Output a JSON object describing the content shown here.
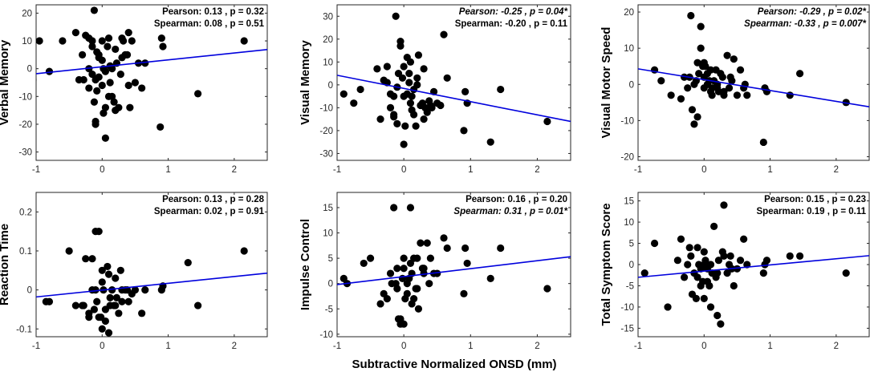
{
  "figure": {
    "xlabel": "Subtractive Normalized ONSD (mm)"
  },
  "chart_data": [
    {
      "type": "scatter",
      "ylabel": "Verbal Memory",
      "xlim": [
        -1,
        2.5
      ],
      "ylim": [
        -33,
        23
      ],
      "xticks": [
        -1,
        0,
        1,
        2
      ],
      "yticks": [
        -30,
        -20,
        -10,
        0,
        10,
        20
      ],
      "stats": [
        {
          "text": "Pearson: 0.13 , p = 0.32",
          "italic": false
        },
        {
          "text": "Spearman: 0.08 , p = 0.51",
          "italic": false
        }
      ],
      "fit": {
        "x": [
          -1,
          2.5
        ],
        "y": [
          -1.8,
          6.9
        ]
      },
      "x": [
        -1.05,
        -0.95,
        -0.8,
        -0.6,
        -0.4,
        -0.35,
        -0.3,
        -0.25,
        -0.2,
        -0.2,
        -0.15,
        -0.15,
        -0.12,
        -0.1,
        -0.1,
        -0.08,
        -0.05,
        -0.05,
        0,
        0,
        0,
        0.02,
        0.05,
        0.05,
        0.08,
        0.1,
        0.1,
        0.12,
        0.15,
        0.15,
        0.2,
        0.2,
        0.25,
        0.3,
        0.3,
        0.35,
        0.4,
        0.4,
        0.45,
        0.5,
        0.55,
        0.6,
        0.65,
        0.9,
        0.92,
        1.45,
        2.15,
        -0.1,
        -0.12,
        -0.08,
        -0.05,
        0.12,
        0.18,
        -0.15,
        0.22,
        0.05,
        -0.2,
        0.28,
        0.32,
        0.38,
        0.42,
        0.02,
        -0.28,
        0.88
      ],
      "y": [
        -4,
        10,
        -1,
        10,
        13,
        -4,
        5,
        12,
        11,
        0,
        8,
        10,
        21,
        -19,
        -20,
        6,
        -3,
        5,
        10,
        3,
        -6,
        0,
        -14,
        -25,
        8,
        11,
        -10,
        -5,
        0,
        -10,
        7,
        -15,
        -14,
        11,
        4,
        5,
        -6,
        13,
        10,
        -5,
        2,
        -7,
        2,
        11,
        8,
        -9,
        10,
        -4,
        -12,
        -8,
        4,
        1,
        -12,
        -2,
        2,
        -1,
        -7,
        -2,
        10,
        5,
        -14,
        -16,
        -4,
        -21
      ]
    },
    {
      "type": "scatter",
      "ylabel": "Visual Memory",
      "xlim": [
        -1,
        2.5
      ],
      "ylim": [
        -33,
        35
      ],
      "xticks": [
        -1,
        0,
        1,
        2
      ],
      "yticks": [
        -30,
        -20,
        -10,
        0,
        10,
        20,
        30
      ],
      "stats": [
        {
          "text": "Pearson: -0.25 , p = 0.04*",
          "italic": true
        },
        {
          "text": "Spearman: -0.20 , p = 0.11",
          "italic": false
        }
      ],
      "fit": {
        "x": [
          -1,
          2.5
        ],
        "y": [
          4.2,
          -16.0
        ]
      },
      "x": [
        -0.9,
        -0.75,
        -0.65,
        -0.4,
        -0.35,
        -0.3,
        -0.25,
        -0.2,
        -0.15,
        -0.15,
        -0.12,
        -0.1,
        -0.08,
        -0.05,
        0,
        0,
        0,
        0.02,
        0.05,
        0.05,
        0.08,
        0.1,
        0.1,
        0.12,
        0.15,
        0.15,
        0.2,
        0.2,
        0.25,
        0.3,
        0.3,
        0.35,
        0.4,
        0.45,
        0.5,
        0.6,
        0.65,
        0.9,
        0.92,
        0.95,
        1.3,
        1.45,
        2.15,
        -0.1,
        -0.05,
        -0.2,
        0.18,
        0.22,
        -0.25,
        0.28,
        0.32,
        0.38,
        -0.02,
        0.12,
        -0.15,
        0.08,
        0.42,
        0.55
      ],
      "y": [
        -4,
        -8,
        -2,
        7,
        -15,
        2,
        8,
        -10,
        -13,
        -5,
        30,
        -17,
        5,
        19,
        -26,
        -5,
        8,
        -18,
        -4,
        12,
        5,
        -8,
        10,
        -5,
        -13,
        -2,
        0,
        3,
        -9,
        7,
        -15,
        -12,
        -9,
        -3,
        -8,
        22,
        3,
        -20,
        -3,
        -8,
        -25,
        -2,
        -16,
        -1,
        17,
        -4,
        -18,
        13,
        1,
        -8,
        -10,
        -7,
        3,
        -11,
        -14,
        1,
        -10,
        -9
      ]
    },
    {
      "type": "scatter",
      "ylabel": "Visual Motor Speed",
      "xlim": [
        -1,
        2.5
      ],
      "ylim": [
        -21,
        22
      ],
      "xticks": [
        -1,
        0,
        1,
        2
      ],
      "yticks": [
        -20,
        -10,
        0,
        10,
        20
      ],
      "stats": [
        {
          "text": "Pearson: -0.29 , p = 0.02*",
          "italic": true
        },
        {
          "text": "Spearman: -0.33 , p = 0.007*",
          "italic": true
        }
      ],
      "fit": {
        "x": [
          -1,
          2.5
        ],
        "y": [
          4.3,
          -6.2
        ]
      },
      "x": [
        -0.75,
        -0.65,
        -0.5,
        -0.35,
        -0.3,
        -0.25,
        -0.2,
        -0.18,
        -0.15,
        -0.12,
        -0.1,
        -0.1,
        -0.08,
        -0.05,
        -0.05,
        0,
        0,
        0,
        0.02,
        0.05,
        0.05,
        0.08,
        0.1,
        0.1,
        0.12,
        0.15,
        0.2,
        0.2,
        0.25,
        0.3,
        0.3,
        0.35,
        0.4,
        0.45,
        0.5,
        0.55,
        0.6,
        0.65,
        0.9,
        0.92,
        0.95,
        1.3,
        1.45,
        2.15,
        -0.15,
        0.18,
        0.22,
        -0.02,
        0.12,
        0.38,
        0.42,
        -0.22,
        0.28,
        0.62
      ],
      "y": [
        4,
        1,
        -3,
        -4,
        2,
        -1,
        19,
        -7,
        -11,
        1,
        -9,
        6,
        3,
        10,
        16,
        6,
        -1,
        2,
        5,
        3,
        0,
        1,
        -2,
        4,
        -3,
        1,
        0,
        -1,
        3,
        -3,
        -2,
        8,
        2,
        7,
        -3,
        4,
        -1,
        -3,
        -16,
        -1,
        -2,
        -3,
        3,
        -5,
        0,
        4,
        -2,
        5,
        -1,
        -1,
        1,
        2,
        2,
        0
      ]
    },
    {
      "type": "scatter",
      "ylabel": "Reaction Time",
      "xlim": [
        -1,
        2.5
      ],
      "ylim": [
        -0.12,
        0.25
      ],
      "xticks": [
        -1,
        0,
        1,
        2
      ],
      "yticks": [
        -0.1,
        0,
        0.1,
        0.2
      ],
      "stats": [
        {
          "text": "Pearson: 0.13 , p = 0.28",
          "italic": false
        },
        {
          "text": "Spearman: 0.02 , p = 0.91",
          "italic": false
        }
      ],
      "fit": {
        "x": [
          -1,
          2.5
        ],
        "y": [
          -0.018,
          0.043
        ]
      },
      "x": [
        -0.85,
        -0.8,
        -0.5,
        -0.4,
        -0.3,
        -0.25,
        -0.2,
        -0.15,
        -0.12,
        -0.1,
        -0.1,
        -0.08,
        -0.05,
        -0.05,
        0,
        0,
        0,
        0.02,
        0.05,
        0.05,
        0.08,
        0.1,
        0.1,
        0.12,
        0.15,
        0.2,
        0.2,
        0.25,
        0.3,
        0.3,
        0.35,
        0.4,
        0.45,
        0.5,
        0.6,
        0.65,
        0.9,
        0.92,
        1.3,
        1.45,
        2.15,
        -0.2,
        -0.15,
        0.18,
        -0.02,
        0.22,
        0.12,
        0.28,
        -0.28,
        0.38
      ],
      "y": [
        -0.03,
        -0.03,
        0.1,
        -0.04,
        -0.04,
        0.08,
        -0.06,
        0.08,
        -0.05,
        0.15,
        0.0,
        -0.03,
        0.15,
        -0.07,
        0.05,
        -0.1,
        0.02,
        0.0,
        -0.05,
        -0.08,
        0.06,
        0.04,
        -0.11,
        -0.02,
        0.0,
        -0.04,
        0.03,
        -0.06,
        0.0,
        -0.03,
        0.0,
        -0.03,
        -0.01,
        0.0,
        -0.06,
        0.0,
        0.0,
        0.01,
        0.07,
        -0.04,
        0.1,
        -0.07,
        0.0,
        -0.04,
        -0.07,
        -0.02,
        -0.04,
        0.05,
        -0.04,
        0.0
      ]
    },
    {
      "type": "scatter",
      "ylabel": "Impulse Control",
      "xlim": [
        -1,
        2.5
      ],
      "ylim": [
        -10.5,
        18
      ],
      "xticks": [
        -1,
        0,
        1,
        2
      ],
      "yticks": [
        -10,
        -5,
        0,
        5,
        10,
        15
      ],
      "stats": [
        {
          "text": "Pearson: 0.16 , p = 0.20",
          "italic": false
        },
        {
          "text": "Spearman: 0.31 , p = 0.01*",
          "italic": true
        }
      ],
      "fit": {
        "x": [
          -1,
          2.5
        ],
        "y": [
          -0.2,
          5.3
        ]
      },
      "x": [
        -0.9,
        -0.85,
        -0.6,
        -0.5,
        -0.35,
        -0.3,
        -0.25,
        -0.2,
        -0.15,
        -0.12,
        -0.1,
        -0.1,
        -0.08,
        -0.05,
        -0.05,
        0,
        0,
        0,
        0.02,
        0.05,
        0.05,
        0.08,
        0.1,
        0.1,
        0.12,
        0.15,
        0.15,
        0.2,
        0.2,
        0.25,
        0.3,
        0.3,
        0.35,
        0.4,
        0.45,
        0.5,
        0.6,
        0.65,
        0.9,
        0.92,
        0.95,
        1.3,
        1.45,
        2.15,
        0.18,
        -0.02,
        0.22,
        0.12,
        -0.18,
        0.28,
        0.38
      ],
      "y": [
        1,
        0,
        4,
        5,
        -4,
        -2,
        -3,
        2,
        15,
        0,
        3,
        -1,
        -7,
        -7,
        -8,
        5,
        -8,
        3,
        -3,
        -2,
        0,
        1,
        15,
        4,
        2,
        5,
        -3,
        5,
        -1,
        8,
        3,
        2,
        8,
        5,
        2,
        2,
        9,
        7,
        -2,
        7,
        4,
        1,
        7,
        -1,
        -1,
        1,
        -5,
        -4,
        0,
        3,
        0
      ]
    },
    {
      "type": "scatter",
      "ylabel": "Total Symptom Score",
      "xlim": [
        -1,
        2.5
      ],
      "ylim": [
        -17,
        17
      ],
      "xticks": [
        -1,
        0,
        1,
        2
      ],
      "yticks": [
        -15,
        -10,
        -5,
        0,
        5,
        10,
        15
      ],
      "stats": [
        {
          "text": "Pearson: 0.15 , p = 0.23",
          "italic": false
        },
        {
          "text": "Spearman: 0.19 , p = 0.11",
          "italic": false
        }
      ],
      "fit": {
        "x": [
          -1,
          2.5
        ],
        "y": [
          -3.0,
          2.1
        ]
      },
      "x": [
        -0.9,
        -0.75,
        -0.55,
        -0.4,
        -0.35,
        -0.3,
        -0.25,
        -0.2,
        -0.18,
        -0.15,
        -0.12,
        -0.1,
        -0.1,
        -0.08,
        -0.05,
        -0.05,
        0,
        0,
        0,
        0.02,
        0.05,
        0.05,
        0.08,
        0.1,
        0.1,
        0.12,
        0.15,
        0.2,
        0.2,
        0.25,
        0.3,
        0.3,
        0.35,
        0.4,
        0.45,
        0.5,
        0.55,
        0.6,
        0.65,
        0.9,
        0.92,
        0.95,
        1.3,
        1.45,
        2.15,
        -0.22,
        0.18,
        -0.02,
        0.22,
        0.28,
        0.38,
        0.42
      ],
      "y": [
        -2,
        5,
        -10,
        1,
        6,
        -3,
        0,
        2,
        -7,
        -2,
        -8,
        4,
        -3,
        0,
        -5,
        -1,
        0,
        3,
        -8,
        1,
        -1,
        -4,
        -5,
        0,
        -10,
        -2,
        9,
        -12,
        -2,
        -14,
        14,
        2,
        -2,
        2,
        -5,
        -1,
        1,
        6,
        0,
        -2,
        0,
        1,
        2,
        2,
        -2,
        4,
        -3,
        -4,
        1,
        3,
        0,
        -1
      ]
    }
  ]
}
